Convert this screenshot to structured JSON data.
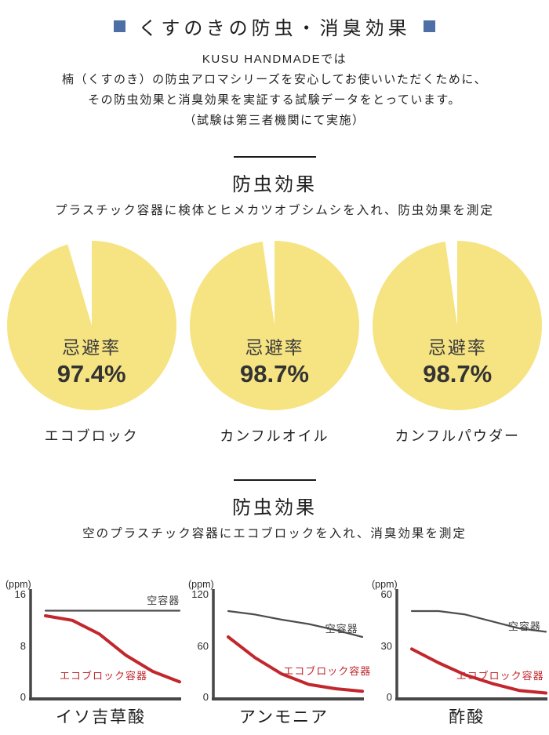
{
  "page": {
    "title": "くすのきの防虫・消臭効果",
    "intro_lines": [
      "KUSU HANDMADEでは",
      "楠（くすのき）の防虫アロマシリーズを安心してお使いいただくために、",
      "その防虫効果と消臭効果を実証する試験データをとっています。",
      "（試験は第三者機関にて実施）"
    ]
  },
  "colors": {
    "accent_blue": "#4e6ea6",
    "pie_yellow": "#f6e382",
    "line_red": "#c1272d",
    "line_gray": "#4d4d4d",
    "axis_gray": "#474747"
  },
  "section_repellent": {
    "heading": "防虫効果",
    "description": "プラスチック容器に検体とヒメカツオブシムシを入れ、防虫効果を測定"
  },
  "section_deodorant": {
    "heading": "防虫効果",
    "description": "空のプラスチック容器にエコブロックを入れ、消臭効果を測定"
  },
  "chart_data": {
    "pies": [
      {
        "type": "pie",
        "label": "エコブロック",
        "rate_label": "忌避率",
        "value_text": "97.4%",
        "value": 97.4,
        "slices": [
          {
            "name": "忌避率",
            "value": 97.4
          },
          {
            "name": "残り",
            "value": 2.6
          }
        ]
      },
      {
        "type": "pie",
        "label": "カンフルオイル",
        "rate_label": "忌避率",
        "value_text": "98.7%",
        "value": 98.7,
        "slices": [
          {
            "name": "忌避率",
            "value": 98.7
          },
          {
            "name": "残り",
            "value": 1.3
          }
        ]
      },
      {
        "type": "pie",
        "label": "カンフルパウダー",
        "rate_label": "忌避率",
        "value_text": "98.7%",
        "value": 98.7,
        "slices": [
          {
            "name": "忌避率",
            "value": 98.7
          },
          {
            "name": "残り",
            "value": 1.3
          }
        ]
      }
    ],
    "line_charts": [
      {
        "type": "line",
        "title": "イソ吉草酸",
        "ylabel": "(ppm)",
        "ylim": [
          0,
          16
        ],
        "yticks": [
          0,
          8,
          16
        ],
        "x": [
          0,
          1,
          2,
          3,
          4,
          5
        ],
        "series": [
          {
            "name": "空容器",
            "color": "#4d4d4d",
            "width": 2.2,
            "values": [
              13.4,
              13.4,
              13.4,
              13.4,
              13.4,
              13.4
            ]
          },
          {
            "name": "エコブロック容器",
            "color": "#c1272d",
            "width": 4,
            "values": [
              12.6,
              11.9,
              9.8,
              6.5,
              4.0,
              2.4
            ]
          }
        ]
      },
      {
        "type": "line",
        "title": "アンモニア",
        "ylabel": "(ppm)",
        "ylim": [
          0,
          120
        ],
        "yticks": [
          0,
          60,
          120
        ],
        "x": [
          0,
          1,
          2,
          3,
          4,
          5
        ],
        "series": [
          {
            "name": "空容器",
            "color": "#4d4d4d",
            "width": 2.2,
            "values": [
              100,
              96,
              90,
              85,
              78,
              70
            ]
          },
          {
            "name": "エコブロック容器",
            "color": "#c1272d",
            "width": 4,
            "values": [
              70,
              46,
              27,
              15,
              10,
              7
            ]
          }
        ]
      },
      {
        "type": "line",
        "title": "酢酸",
        "ylabel": "(ppm)",
        "ylim": [
          0,
          60
        ],
        "yticks": [
          0,
          30,
          60
        ],
        "x": [
          0,
          1,
          2,
          3,
          4,
          5
        ],
        "series": [
          {
            "name": "空容器",
            "color": "#4d4d4d",
            "width": 2.2,
            "values": [
              50,
              50,
              48,
              44,
              40,
              38
            ]
          },
          {
            "name": "エコブロック容器",
            "color": "#c1272d",
            "width": 4,
            "values": [
              28,
              20,
              13,
              8,
              4,
              2.5
            ]
          }
        ]
      }
    ]
  }
}
